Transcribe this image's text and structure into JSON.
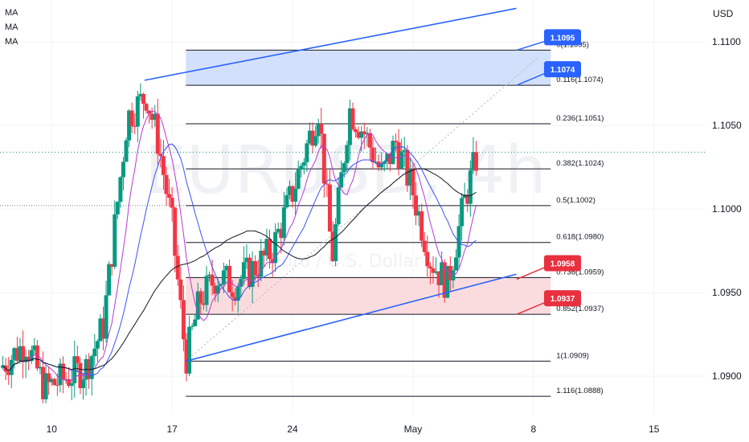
{
  "indicators": [
    "MA",
    "MA",
    "MA"
  ],
  "chart_data": {
    "type": "candlestick",
    "symbol_watermark": "EURUSD, 4h",
    "watermark_sub": "Euro / U.S. Dollar",
    "currency": "USD",
    "price_ticks": [
      "1.1100",
      "1.1050",
      "1.1000",
      "1.0950",
      "1.0900"
    ],
    "time_ticks": [
      {
        "label": "10",
        "x": 10
      },
      {
        "label": "17",
        "x": 17
      },
      {
        "label": "24",
        "x": 24
      },
      {
        "label": "May",
        "x": 31
      },
      {
        "label": "8",
        "x": 38
      },
      {
        "label": "15",
        "x": 45
      }
    ],
    "fib_levels": [
      {
        "ratio": "0",
        "price": 1.1095,
        "label": "0(1.1095)"
      },
      {
        "ratio": "0.116",
        "price": 1.1074,
        "label": "0.116(1.1074)"
      },
      {
        "ratio": "0.236",
        "price": 1.1051,
        "label": "0.236(1.1051)"
      },
      {
        "ratio": "0.382",
        "price": 1.1024,
        "label": "0.382(1.1024)"
      },
      {
        "ratio": "0.5",
        "price": 1.1002,
        "label": "0.5(1.1002)"
      },
      {
        "ratio": "0.618",
        "price": 1.098,
        "label": "0.618(1.0980)"
      },
      {
        "ratio": "0.736",
        "price": 1.0959,
        "label": "0.736(1.0959)"
      },
      {
        "ratio": "0.852",
        "price": 1.0937,
        "label": "0.852(1.0937)"
      },
      {
        "ratio": "1",
        "price": 1.0909,
        "label": "1(1.0909)"
      },
      {
        "ratio": "1.116",
        "price": 1.0888,
        "label": "1.116(1.0888)"
      }
    ],
    "zones": [
      {
        "name": "resistance",
        "from": 1.1074,
        "to": 1.1095,
        "color": "#d3e0fb"
      },
      {
        "name": "support",
        "from": 1.0937,
        "to": 1.0959,
        "color": "#fbdcde"
      }
    ],
    "callouts": [
      {
        "text": "1.1095",
        "price": 1.1095,
        "color": "#2962ff"
      },
      {
        "text": "1.1074",
        "price": 1.1074,
        "color": "#2962ff"
      },
      {
        "text": "1.0958",
        "price": 1.0958,
        "color": "#e8303f"
      },
      {
        "text": "1.0937",
        "price": 1.0937,
        "color": "#e8303f"
      }
    ],
    "trendlines": [
      {
        "from": {
          "x": 15.4,
          "y": 1.1077
        },
        "to": {
          "x": 37.0,
          "y": 1.112
        }
      },
      {
        "from": {
          "x": 17.8,
          "y": 1.0909
        },
        "to": {
          "x": 37.0,
          "y": 1.0961
        }
      }
    ],
    "last_price": 1.1034,
    "colors": {
      "up": "#089981",
      "down": "#f23645",
      "ma1": "#3f51f5",
      "ma2": "#b73ad6",
      "ma3": "#131722",
      "level": "#131722",
      "trend": "#2962ff"
    },
    "x_range": [
      7,
      48
    ],
    "y_range": [
      1.0877,
      1.1125
    ]
  }
}
